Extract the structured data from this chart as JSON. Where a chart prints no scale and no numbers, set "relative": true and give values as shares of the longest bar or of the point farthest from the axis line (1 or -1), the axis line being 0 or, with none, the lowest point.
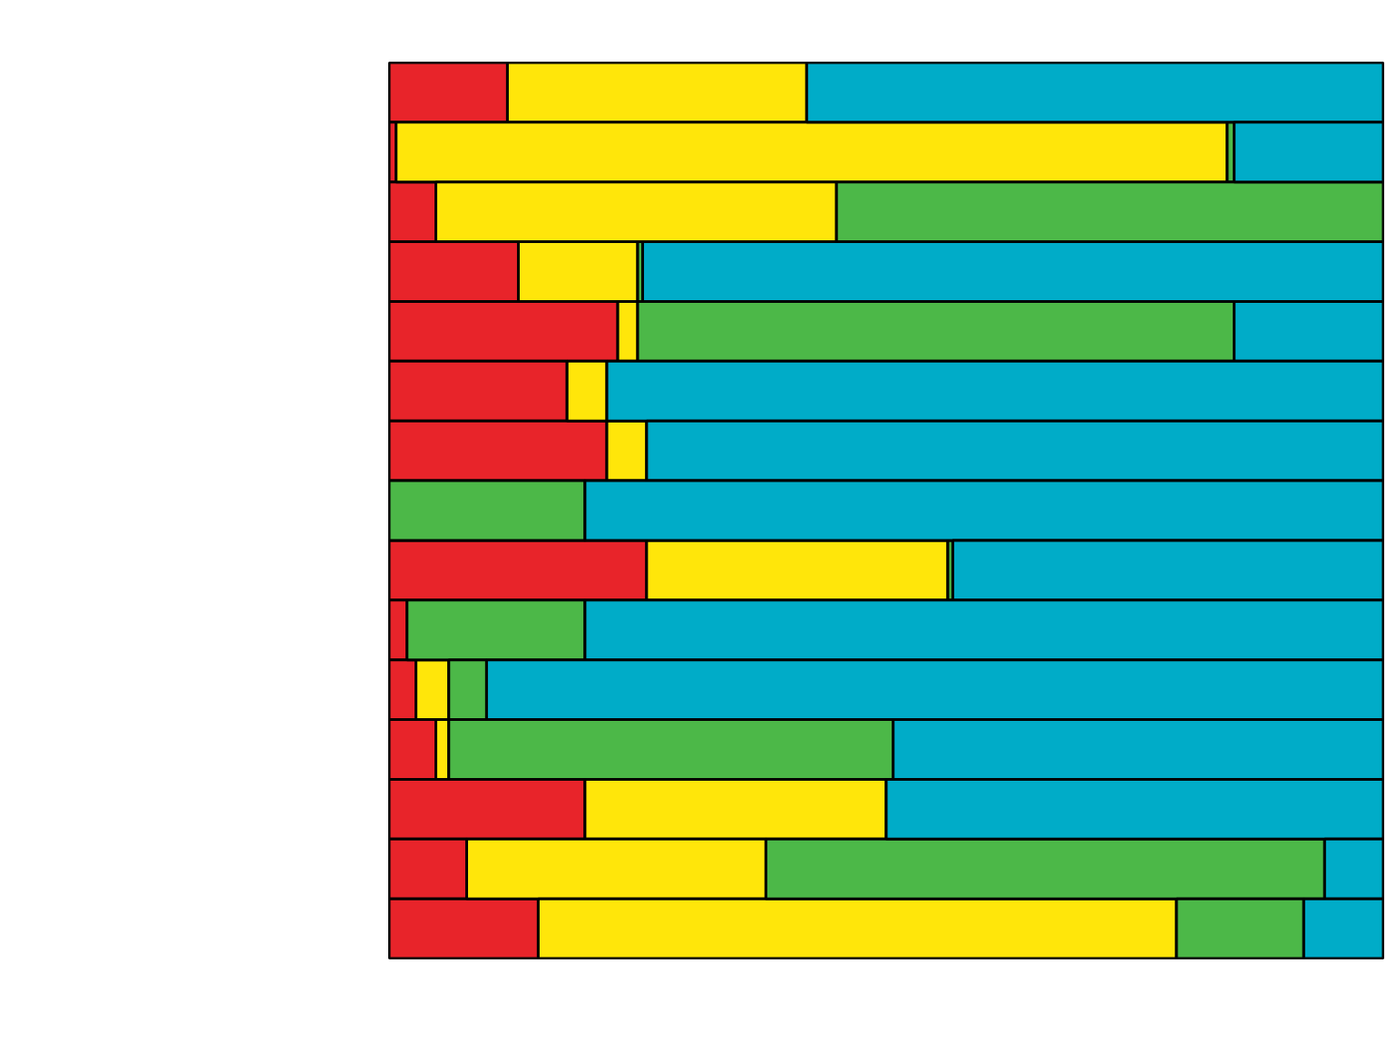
{
  "chart_data": {
    "type": "bar",
    "orientation": "horizontal",
    "stacked": true,
    "relative": true,
    "categories": [
      null,
      null,
      null,
      null,
      null,
      null,
      null,
      null,
      null,
      null,
      null,
      null,
      null,
      null,
      null
    ],
    "series": [
      {
        "color": "#e8242a",
        "values": [
          0.119,
          0.007,
          0.047,
          0.13,
          0.23,
          0.179,
          0.219,
          0,
          0.259,
          0.018,
          0.027,
          0.047,
          0.197,
          0.078,
          0.15
        ]
      },
      {
        "color": "#ffe60a",
        "values": [
          0.301,
          0.836,
          0.403,
          0.12,
          0.02,
          0.04,
          0.04,
          0,
          0.303,
          0,
          0.033,
          0.013,
          0.303,
          0.301,
          0.642
        ]
      },
      {
        "color": "#4cb848",
        "values": [
          0,
          0.007,
          0.55,
          0.005,
          0.6,
          0,
          0,
          0.197,
          0.005,
          0.179,
          0.038,
          0.447,
          0,
          0.562,
          0.128
        ]
      },
      {
        "color": "#00acc8",
        "values": [
          0.58,
          0.15,
          0,
          0.745,
          0.15,
          0.781,
          0.741,
          0.803,
          0.433,
          0.803,
          0.902,
          0.493,
          0.5,
          0.059,
          0.08
        ]
      }
    ]
  }
}
